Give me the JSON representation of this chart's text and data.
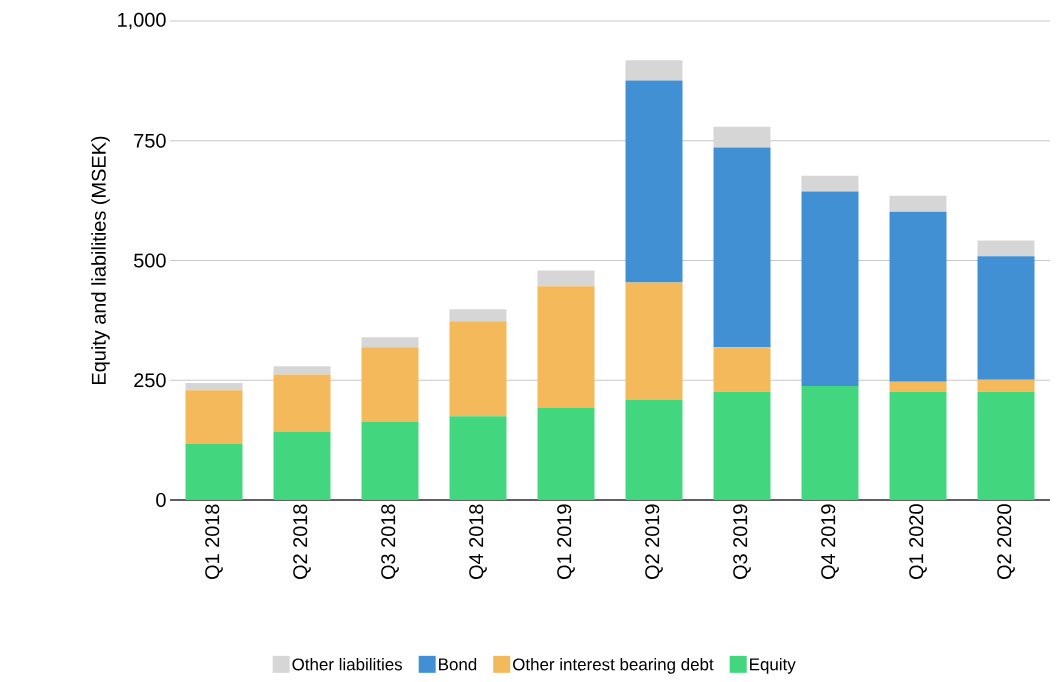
{
  "chart_data": {
    "type": "bar",
    "stacked": true,
    "ylabel": "Equity and liabilities (MSEK)",
    "categories": [
      "Q1 2018",
      "Q2 2018",
      "Q3 2018",
      "Q4 2018",
      "Q1 2019",
      "Q2 2019",
      "Q3 2019",
      "Q4 2019",
      "Q1 2020",
      "Q2 2020"
    ],
    "series": [
      {
        "name": "Equity",
        "color": "#42d77f",
        "values": [
          117,
          142,
          163,
          175,
          193,
          209,
          226,
          238,
          226,
          226
        ]
      },
      {
        "name": "Other interest bearing debt",
        "color": "#f3b95a",
        "values": [
          112,
          120,
          156,
          198,
          253,
          245,
          93,
          0,
          21,
          25
        ]
      },
      {
        "name": "Bond",
        "color": "#4190d4",
        "values": [
          0,
          0,
          0,
          0,
          0,
          422,
          417,
          406,
          355,
          258
        ]
      },
      {
        "name": "Other liabilities",
        "color": "#d6d6d6",
        "values": [
          15,
          17,
          21,
          25,
          33,
          42,
          43,
          33,
          33,
          33
        ]
      }
    ],
    "ylim": [
      0,
      1000
    ],
    "yticks": [
      0,
      250,
      500,
      750,
      {
        "value": 1000,
        "label": "1,000"
      }
    ],
    "grid": "y",
    "legend": "bottom"
  }
}
